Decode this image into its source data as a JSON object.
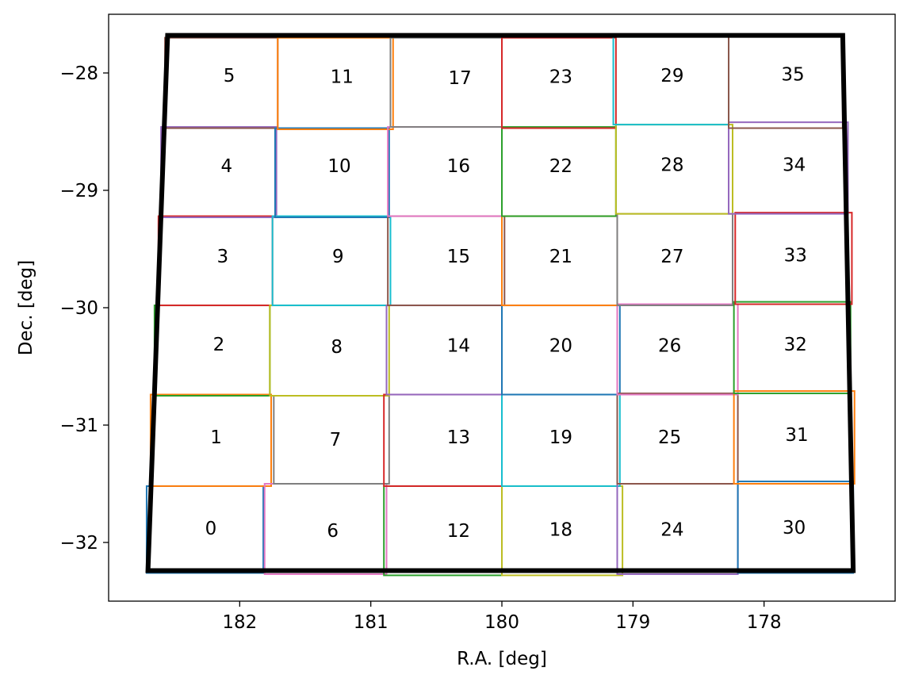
{
  "chart_data": {
    "type": "line",
    "xlabel": "R.A. [deg]",
    "ylabel": "Dec. [deg]",
    "xlim": [
      183.0,
      177.0
    ],
    "ylim": [
      -32.5,
      -27.5
    ],
    "x_inverted": true,
    "xticks": [
      182,
      181,
      180,
      179,
      178
    ],
    "yticks": [
      -28,
      -29,
      -30,
      -31,
      -32
    ],
    "xtick_labels": [
      "182",
      "181",
      "180",
      "179",
      "178"
    ],
    "ytick_labels": [
      "−28",
      "−29",
      "−30",
      "−31",
      "−32"
    ],
    "grid": false,
    "legend": "none",
    "field_boundary": {
      "color": "#000000",
      "corners": [
        [
          182.55,
          -27.68
        ],
        [
          177.4,
          -27.68
        ],
        [
          177.32,
          -32.24
        ],
        [
          182.7,
          -32.24
        ]
      ]
    },
    "colors": [
      "#1f77b4",
      "#ff7f0e",
      "#2ca02c",
      "#d62728",
      "#9467bd",
      "#8c564b",
      "#e377c2",
      "#7f7f7f",
      "#bcbd22",
      "#17becf"
    ],
    "patches": [
      {
        "id": "0",
        "ra": [
          182.71,
          181.82
        ],
        "dec": [
          -31.52,
          -32.26
        ],
        "label_ra": 182.22,
        "label_dec": -31.88
      },
      {
        "id": "1",
        "ra": [
          182.68,
          181.76
        ],
        "dec": [
          -30.74,
          -31.52
        ],
        "label_ra": 182.18,
        "label_dec": -31.1
      },
      {
        "id": "2",
        "ra": [
          182.65,
          181.77
        ],
        "dec": [
          -29.98,
          -30.75
        ],
        "label_ra": 182.16,
        "label_dec": -30.31
      },
      {
        "id": "3",
        "ra": [
          182.62,
          181.75
        ],
        "dec": [
          -29.22,
          -29.98
        ],
        "label_ra": 182.13,
        "label_dec": -29.56
      },
      {
        "id": "4",
        "ra": [
          182.6,
          181.72
        ],
        "dec": [
          -28.46,
          -29.23
        ],
        "label_ra": 182.1,
        "label_dec": -28.79
      },
      {
        "id": "5",
        "ra": [
          182.57,
          181.71
        ],
        "dec": [
          -27.7,
          -28.47
        ],
        "label_ra": 182.08,
        "label_dec": -28.02
      },
      {
        "id": "6",
        "ra": [
          181.81,
          180.88
        ],
        "dec": [
          -31.5,
          -32.27
        ],
        "label_ra": 181.29,
        "label_dec": -31.9
      },
      {
        "id": "7",
        "ra": [
          181.74,
          180.86
        ],
        "dec": [
          -30.75,
          -31.5
        ],
        "label_ra": 181.27,
        "label_dec": -31.12
      },
      {
        "id": "8",
        "ra": [
          181.77,
          180.86
        ],
        "dec": [
          -29.98,
          -30.75
        ],
        "label_ra": 181.26,
        "label_dec": -30.33
      },
      {
        "id": "9",
        "ra": [
          181.75,
          180.85
        ],
        "dec": [
          -29.22,
          -29.98
        ],
        "label_ra": 181.25,
        "label_dec": -29.56
      },
      {
        "id": "10",
        "ra": [
          181.73,
          180.86
        ],
        "dec": [
          -28.47,
          -29.23
        ],
        "label_ra": 181.24,
        "label_dec": -28.79
      },
      {
        "id": "11",
        "ra": [
          181.71,
          180.83
        ],
        "dec": [
          -27.7,
          -28.48
        ],
        "label_ra": 181.22,
        "label_dec": -28.03
      },
      {
        "id": "12",
        "ra": [
          180.9,
          180.0
        ],
        "dec": [
          -31.52,
          -32.28
        ],
        "label_ra": 180.33,
        "label_dec": -31.9
      },
      {
        "id": "13",
        "ra": [
          180.9,
          180.0
        ],
        "dec": [
          -30.74,
          -31.52
        ],
        "label_ra": 180.33,
        "label_dec": -31.1
      },
      {
        "id": "14",
        "ra": [
          180.88,
          180.0
        ],
        "dec": [
          -29.98,
          -30.74
        ],
        "label_ra": 180.33,
        "label_dec": -30.32
      },
      {
        "id": "15",
        "ra": [
          180.87,
          179.98
        ],
        "dec": [
          -29.22,
          -29.98
        ],
        "label_ra": 180.33,
        "label_dec": -29.56
      },
      {
        "id": "16",
        "ra": [
          180.87,
          180.0
        ],
        "dec": [
          -28.46,
          -29.22
        ],
        "label_ra": 180.33,
        "label_dec": -28.79
      },
      {
        "id": "17",
        "ra": [
          180.85,
          180.0
        ],
        "dec": [
          -27.7,
          -28.46
        ],
        "label_ra": 180.32,
        "label_dec": -28.04
      },
      {
        "id": "18",
        "ra": [
          180.0,
          179.08
        ],
        "dec": [
          -31.52,
          -32.28
        ],
        "label_ra": 179.55,
        "label_dec": -31.89
      },
      {
        "id": "19",
        "ra": [
          180.0,
          179.1
        ],
        "dec": [
          -30.74,
          -31.52
        ],
        "label_ra": 179.55,
        "label_dec": -31.1
      },
      {
        "id": "20",
        "ra": [
          180.0,
          179.1
        ],
        "dec": [
          -29.98,
          -30.74
        ],
        "label_ra": 179.55,
        "label_dec": -30.32
      },
      {
        "id": "21",
        "ra": [
          180.0,
          179.12
        ],
        "dec": [
          -29.22,
          -29.98
        ],
        "label_ra": 179.55,
        "label_dec": -29.56
      },
      {
        "id": "22",
        "ra": [
          180.0,
          179.13
        ],
        "dec": [
          -28.46,
          -29.22
        ],
        "label_ra": 179.55,
        "label_dec": -28.79
      },
      {
        "id": "23",
        "ra": [
          180.0,
          179.13
        ],
        "dec": [
          -27.7,
          -28.47
        ],
        "label_ra": 179.55,
        "label_dec": -28.03
      },
      {
        "id": "24",
        "ra": [
          179.12,
          178.2
        ],
        "dec": [
          -31.5,
          -32.27
        ],
        "label_ra": 178.7,
        "label_dec": -31.89
      },
      {
        "id": "25",
        "ra": [
          179.12,
          178.2
        ],
        "dec": [
          -30.73,
          -31.5
        ],
        "label_ra": 178.72,
        "label_dec": -31.1
      },
      {
        "id": "26",
        "ra": [
          179.12,
          178.2
        ],
        "dec": [
          -29.97,
          -30.74
        ],
        "label_ra": 178.72,
        "label_dec": -30.32
      },
      {
        "id": "27",
        "ra": [
          179.12,
          178.24
        ],
        "dec": [
          -29.2,
          -29.98
        ],
        "label_ra": 178.7,
        "label_dec": -29.56
      },
      {
        "id": "28",
        "ra": [
          179.13,
          178.24
        ],
        "dec": [
          -28.44,
          -29.2
        ],
        "label_ra": 178.7,
        "label_dec": -28.78
      },
      {
        "id": "29",
        "ra": [
          179.15,
          178.27
        ],
        "dec": [
          -27.69,
          -28.44
        ],
        "label_ra": 178.7,
        "label_dec": -28.02
      },
      {
        "id": "30",
        "ra": [
          178.2,
          177.32
        ],
        "dec": [
          -31.48,
          -32.26
        ],
        "label_ra": 177.77,
        "label_dec": -31.87
      },
      {
        "id": "31",
        "ra": [
          178.23,
          177.31
        ],
        "dec": [
          -30.71,
          -31.5
        ],
        "label_ra": 177.75,
        "label_dec": -31.08
      },
      {
        "id": "32",
        "ra": [
          178.23,
          177.34
        ],
        "dec": [
          -29.95,
          -30.73
        ],
        "label_ra": 177.76,
        "label_dec": -30.31
      },
      {
        "id": "33",
        "ra": [
          178.22,
          177.33
        ],
        "dec": [
          -29.19,
          -29.97
        ],
        "label_ra": 177.76,
        "label_dec": -29.55
      },
      {
        "id": "34",
        "ra": [
          178.27,
          177.36
        ],
        "dec": [
          -28.42,
          -29.2
        ],
        "label_ra": 177.77,
        "label_dec": -28.78
      },
      {
        "id": "35",
        "ra": [
          178.27,
          177.4
        ],
        "dec": [
          -27.68,
          -28.47
        ],
        "label_ra": 177.78,
        "label_dec": -28.01
      }
    ]
  }
}
